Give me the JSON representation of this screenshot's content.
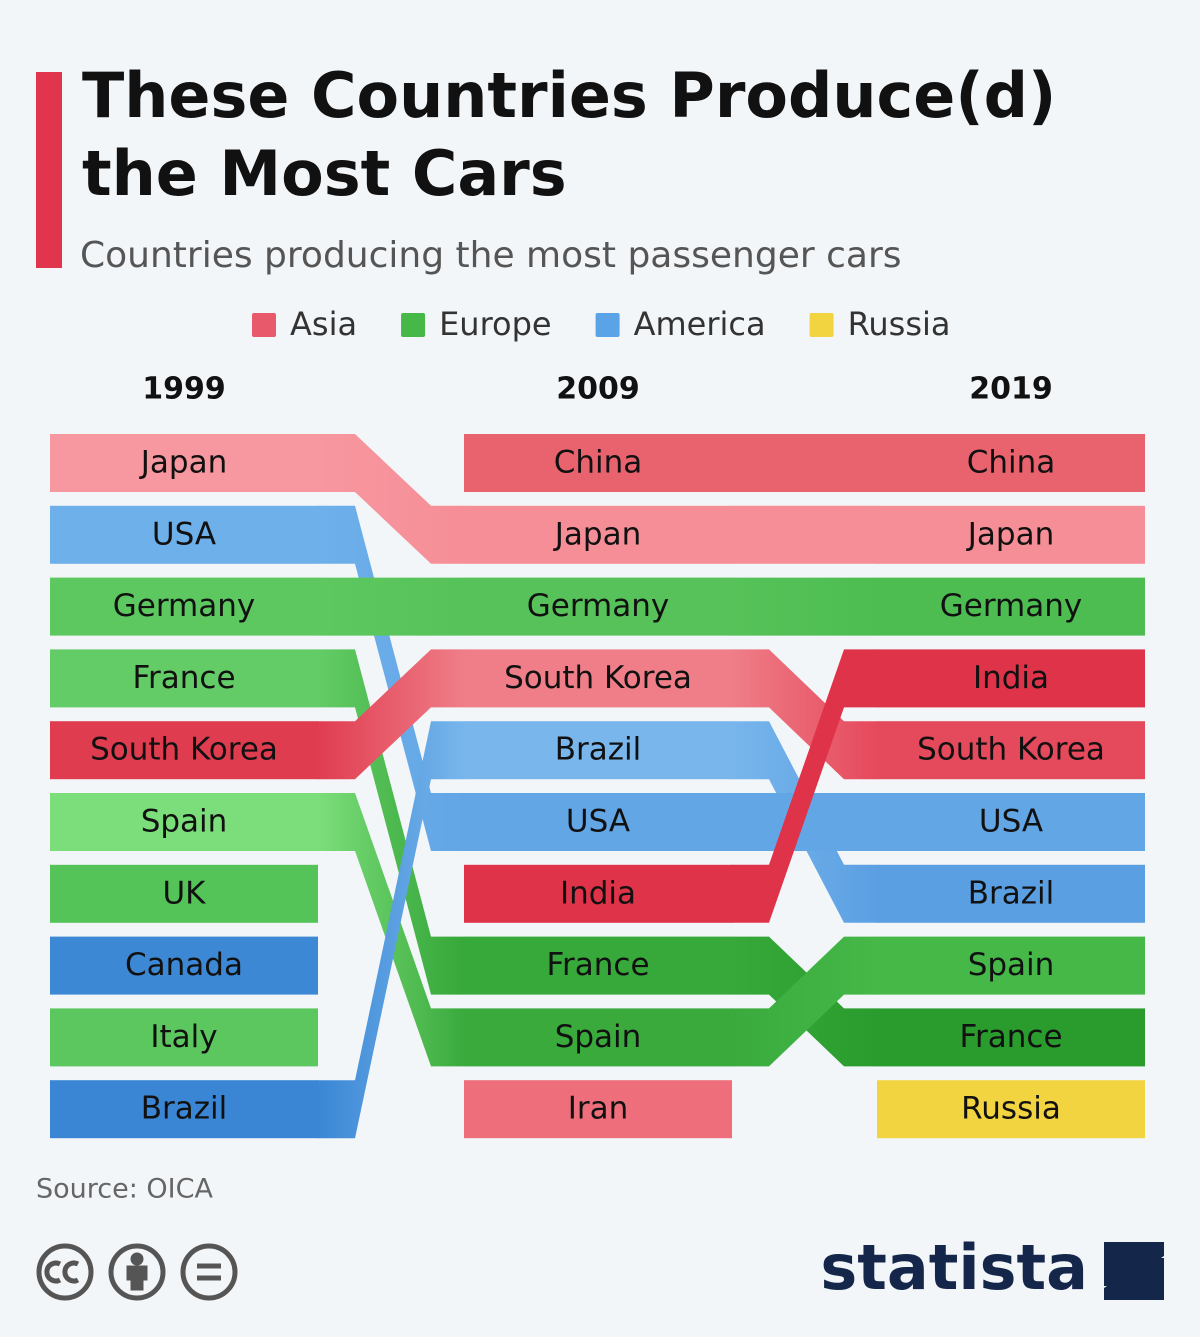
{
  "title": "These Countries Produce(d) the Most Cars",
  "subtitle": "Countries producing the most passenger cars",
  "legend": [
    {
      "name": "Asia",
      "color": "#e8596b"
    },
    {
      "name": "Europe",
      "color": "#45b848"
    },
    {
      "name": "America",
      "color": "#5aa3e6"
    },
    {
      "name": "Russia",
      "color": "#f2d441"
    }
  ],
  "chart_data": {
    "type": "bump",
    "columns": [
      {
        "label": "1999",
        "entries": [
          {
            "name": "Japan",
            "color": "#f7979f"
          },
          {
            "name": "USA",
            "color": "#6eb0ea"
          },
          {
            "name": "Germany",
            "color": "#5cc85f"
          },
          {
            "name": "France",
            "color": "#64cc66"
          },
          {
            "name": "South Korea",
            "color": "#e03c50"
          },
          {
            "name": "Spain",
            "color": "#7cde7a"
          },
          {
            "name": "UK",
            "color": "#55c458"
          },
          {
            "name": "Canada",
            "color": "#3d88d4"
          },
          {
            "name": "Italy",
            "color": "#5cc65f"
          },
          {
            "name": "Brazil",
            "color": "#3a86d5"
          }
        ]
      },
      {
        "label": "2009",
        "entries": [
          {
            "name": "China",
            "color": "#e9636f"
          },
          {
            "name": "Japan",
            "color": "#f68e97"
          },
          {
            "name": "Germany",
            "color": "#56c259"
          },
          {
            "name": "South Korea",
            "color": "#ef7e88"
          },
          {
            "name": "Brazil",
            "color": "#78b6ec"
          },
          {
            "name": "USA",
            "color": "#63a6e6"
          },
          {
            "name": "India",
            "color": "#de3349"
          },
          {
            "name": "France",
            "color": "#37a83a"
          },
          {
            "name": "Spain",
            "color": "#3aaa3d"
          },
          {
            "name": "Iran",
            "color": "#ee6f7b"
          }
        ]
      },
      {
        "label": "2019",
        "entries": [
          {
            "name": "China",
            "color": "#e9636f"
          },
          {
            "name": "Japan",
            "color": "#f68e97"
          },
          {
            "name": "Germany",
            "color": "#4dbd51"
          },
          {
            "name": "India",
            "color": "#de3349"
          },
          {
            "name": "South Korea",
            "color": "#e5495c"
          },
          {
            "name": "USA",
            "color": "#62a6e6"
          },
          {
            "name": "Brazil",
            "color": "#5b9fe3"
          },
          {
            "name": "Spain",
            "color": "#45b848"
          },
          {
            "name": "France",
            "color": "#2a9c2e"
          },
          {
            "name": "Russia",
            "color": "#f2d441"
          }
        ]
      }
    ]
  },
  "source": "Source: OICA",
  "brand": "statista"
}
